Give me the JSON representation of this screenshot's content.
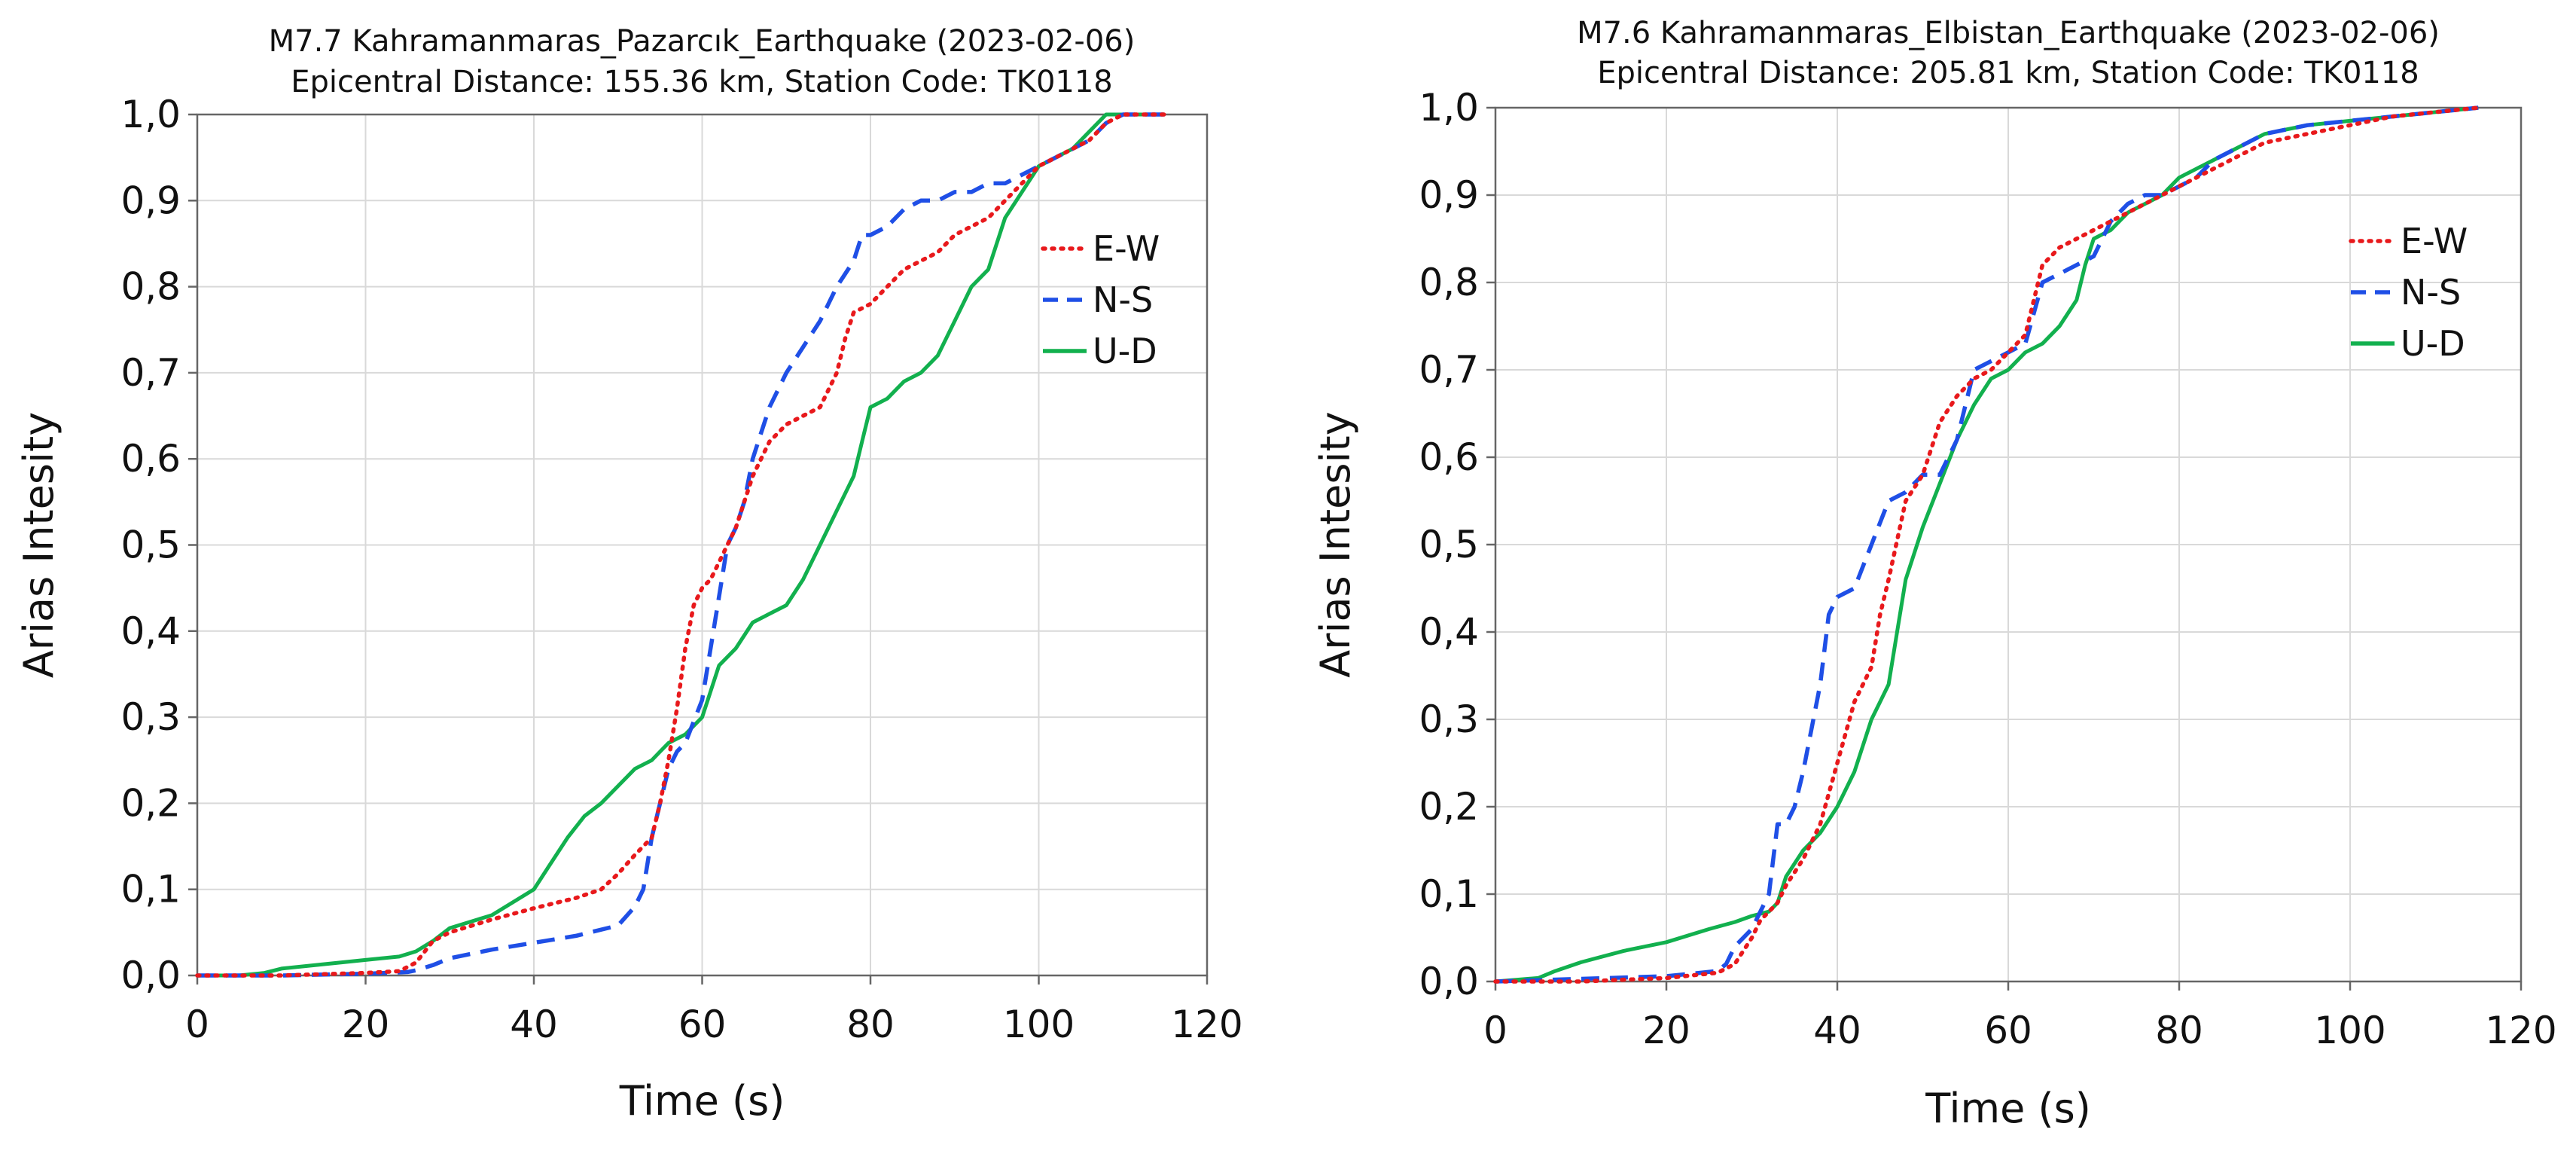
{
  "chart_data": [
    {
      "type": "line",
      "title": "M7.7 Kahramanmaras_Pazarcık_Earthquake (2023-02-06)",
      "subtitle": "Epicentral Distance: 155.36 km, Station Code: TK0118",
      "xlabel": "Time (s)",
      "ylabel": "Arias Intesity",
      "xlim": [
        0,
        120
      ],
      "ylim": [
        0,
        1
      ],
      "xticks": [
        "0",
        "20",
        "40",
        "60",
        "80",
        "100",
        "120"
      ],
      "yticks": [
        "0,0",
        "0,1",
        "0,2",
        "0,3",
        "0,4",
        "0,5",
        "0,6",
        "0,7",
        "0,8",
        "0,9",
        "1,0"
      ],
      "grid": true,
      "legend_position": "right",
      "series": [
        {
          "name": "E-W",
          "color": "#e8191c",
          "style": "dotted",
          "x": [
            0,
            10,
            20,
            24,
            26,
            28,
            30,
            35,
            40,
            45,
            48,
            50,
            52,
            53,
            54,
            55,
            56,
            57,
            58,
            59,
            60,
            61,
            62,
            63,
            64,
            65,
            66,
            67,
            68,
            70,
            72,
            74,
            75,
            76,
            77,
            78,
            80,
            82,
            84,
            86,
            88,
            90,
            92,
            94,
            96,
            98,
            100,
            102,
            104,
            106,
            108,
            110,
            112,
            115
          ],
          "y": [
            0,
            0,
            0.003,
            0.005,
            0.015,
            0.04,
            0.05,
            0.065,
            0.078,
            0.09,
            0.1,
            0.118,
            0.14,
            0.15,
            0.16,
            0.2,
            0.25,
            0.31,
            0.38,
            0.43,
            0.45,
            0.46,
            0.48,
            0.5,
            0.52,
            0.55,
            0.58,
            0.6,
            0.62,
            0.64,
            0.65,
            0.66,
            0.68,
            0.7,
            0.74,
            0.77,
            0.78,
            0.8,
            0.82,
            0.83,
            0.84,
            0.86,
            0.87,
            0.88,
            0.9,
            0.92,
            0.94,
            0.95,
            0.96,
            0.97,
            0.99,
            1.0,
            1.0,
            1.0
          ]
        },
        {
          "name": "N-S",
          "color": "#1f4fe6",
          "style": "dashed",
          "x": [
            0,
            10,
            20,
            25,
            26,
            28,
            30,
            35,
            40,
            45,
            50,
            52,
            53,
            54,
            55,
            56,
            57,
            58,
            60,
            61,
            62,
            63,
            64,
            65,
            66,
            67,
            68,
            70,
            72,
            74,
            76,
            78,
            79,
            80,
            82,
            84,
            86,
            88,
            90,
            92,
            94,
            96,
            98,
            100,
            102,
            104,
            106,
            108,
            110,
            112,
            115
          ],
          "y": [
            0,
            0,
            0.002,
            0.004,
            0.006,
            0.012,
            0.02,
            0.03,
            0.038,
            0.046,
            0.058,
            0.08,
            0.1,
            0.16,
            0.2,
            0.24,
            0.26,
            0.27,
            0.32,
            0.38,
            0.44,
            0.5,
            0.52,
            0.55,
            0.6,
            0.63,
            0.66,
            0.7,
            0.73,
            0.76,
            0.8,
            0.83,
            0.86,
            0.86,
            0.87,
            0.89,
            0.9,
            0.9,
            0.91,
            0.91,
            0.92,
            0.92,
            0.93,
            0.94,
            0.95,
            0.96,
            0.97,
            0.99,
            1.0,
            1.0,
            1.0
          ]
        },
        {
          "name": "U-D",
          "color": "#12b04e",
          "style": "solid",
          "x": [
            0,
            5,
            8,
            10,
            15,
            20,
            24,
            26,
            28,
            30,
            35,
            40,
            42,
            44,
            46,
            48,
            50,
            52,
            54,
            55,
            56,
            58,
            60,
            62,
            64,
            66,
            68,
            70,
            72,
            74,
            76,
            78,
            79,
            80,
            82,
            84,
            86,
            88,
            90,
            92,
            94,
            96,
            98,
            100,
            102,
            104,
            106,
            108,
            110,
            112,
            115
          ],
          "y": [
            0,
            0,
            0.003,
            0.008,
            0.013,
            0.018,
            0.022,
            0.028,
            0.04,
            0.055,
            0.07,
            0.1,
            0.13,
            0.16,
            0.185,
            0.2,
            0.22,
            0.24,
            0.25,
            0.26,
            0.27,
            0.28,
            0.3,
            0.36,
            0.38,
            0.41,
            0.42,
            0.43,
            0.46,
            0.5,
            0.54,
            0.58,
            0.62,
            0.66,
            0.67,
            0.69,
            0.7,
            0.72,
            0.76,
            0.8,
            0.82,
            0.88,
            0.91,
            0.94,
            0.95,
            0.96,
            0.98,
            1.0,
            1.0,
            1.0,
            1.0
          ]
        }
      ]
    },
    {
      "type": "line",
      "title": "M7.6 Kahramanmaras_Elbistan_Earthquake (2023-02-06)",
      "subtitle": "Epicentral Distance: 205.81 km, Station Code: TK0118",
      "xlabel": "Time (s)",
      "ylabel": "Arias Intesity",
      "xlim": [
        0,
        120
      ],
      "ylim": [
        0,
        1
      ],
      "xticks": [
        "0",
        "20",
        "40",
        "60",
        "80",
        "100",
        "120"
      ],
      "yticks": [
        "0,0",
        "0,1",
        "0,2",
        "0,3",
        "0,4",
        "0,5",
        "0,6",
        "0,7",
        "0,8",
        "0,9",
        "1,0"
      ],
      "grid": true,
      "legend_position": "right",
      "series": [
        {
          "name": "E-W",
          "color": "#e8191c",
          "style": "dotted",
          "x": [
            0,
            10,
            20,
            26,
            28,
            30,
            31,
            32,
            33,
            34,
            36,
            38,
            40,
            42,
            44,
            45,
            46,
            48,
            50,
            52,
            54,
            56,
            58,
            60,
            62,
            64,
            66,
            68,
            70,
            72,
            74,
            76,
            78,
            80,
            82,
            84,
            86,
            88,
            90,
            95,
            100,
            105,
            110,
            115
          ],
          "y": [
            0,
            0,
            0.004,
            0.01,
            0.02,
            0.05,
            0.07,
            0.08,
            0.09,
            0.11,
            0.14,
            0.18,
            0.25,
            0.32,
            0.36,
            0.42,
            0.46,
            0.55,
            0.58,
            0.64,
            0.67,
            0.69,
            0.7,
            0.72,
            0.74,
            0.82,
            0.84,
            0.85,
            0.86,
            0.87,
            0.88,
            0.89,
            0.9,
            0.91,
            0.92,
            0.93,
            0.94,
            0.95,
            0.96,
            0.97,
            0.98,
            0.99,
            0.995,
            1.0
          ]
        },
        {
          "name": "N-S",
          "color": "#1f4fe6",
          "style": "dashed",
          "x": [
            0,
            10,
            20,
            26,
            27,
            28,
            30,
            32,
            33,
            34,
            35,
            36,
            38,
            39,
            40,
            42,
            44,
            46,
            48,
            50,
            52,
            54,
            55,
            56,
            58,
            60,
            62,
            64,
            66,
            68,
            70,
            72,
            74,
            76,
            78,
            80,
            82,
            84,
            86,
            88,
            90,
            95,
            100,
            105,
            110,
            115
          ],
          "y": [
            0,
            0.003,
            0.006,
            0.012,
            0.02,
            0.04,
            0.06,
            0.1,
            0.18,
            0.18,
            0.2,
            0.24,
            0.34,
            0.42,
            0.44,
            0.45,
            0.5,
            0.55,
            0.56,
            0.58,
            0.58,
            0.62,
            0.66,
            0.7,
            0.71,
            0.72,
            0.73,
            0.8,
            0.81,
            0.82,
            0.83,
            0.87,
            0.89,
            0.9,
            0.9,
            0.91,
            0.92,
            0.94,
            0.95,
            0.96,
            0.97,
            0.98,
            0.985,
            0.99,
            0.995,
            1.0
          ]
        },
        {
          "name": "U-D",
          "color": "#12b04e",
          "style": "solid",
          "x": [
            0,
            5,
            7,
            10,
            15,
            20,
            25,
            28,
            30,
            32,
            33,
            34,
            36,
            38,
            40,
            42,
            44,
            45,
            46,
            47,
            48,
            50,
            52,
            54,
            56,
            58,
            60,
            62,
            64,
            66,
            68,
            69,
            70,
            72,
            74,
            76,
            78,
            80,
            82,
            84,
            86,
            88,
            90,
            95,
            100,
            105,
            110,
            115
          ],
          "y": [
            0,
            0.004,
            0.012,
            0.022,
            0.035,
            0.045,
            0.06,
            0.068,
            0.075,
            0.08,
            0.09,
            0.12,
            0.15,
            0.17,
            0.2,
            0.24,
            0.3,
            0.32,
            0.34,
            0.4,
            0.46,
            0.52,
            0.57,
            0.62,
            0.66,
            0.69,
            0.7,
            0.72,
            0.73,
            0.75,
            0.78,
            0.82,
            0.85,
            0.86,
            0.88,
            0.89,
            0.9,
            0.92,
            0.93,
            0.94,
            0.95,
            0.96,
            0.97,
            0.98,
            0.985,
            0.99,
            0.995,
            1.0
          ]
        }
      ]
    }
  ]
}
